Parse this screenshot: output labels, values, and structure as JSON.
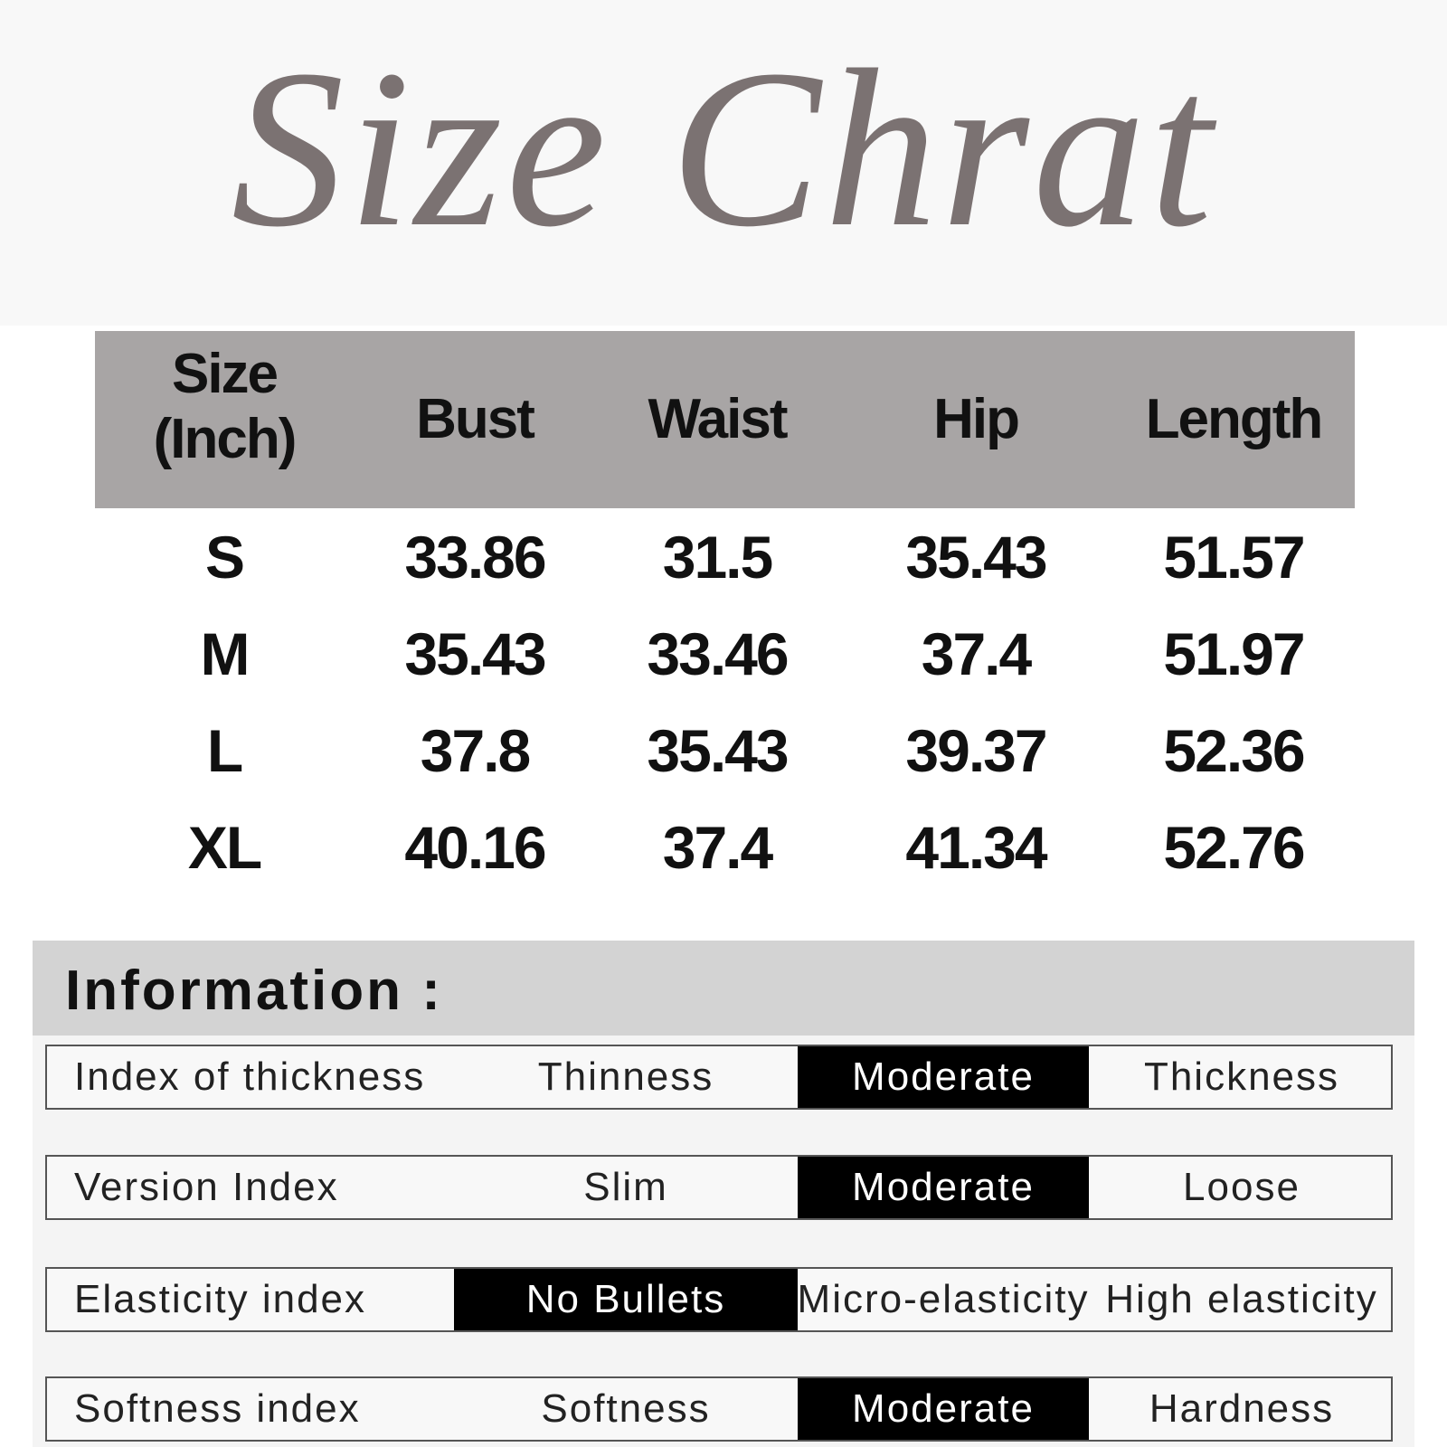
{
  "title": "Size Chrat",
  "table": {
    "header": [
      "Size (Inch)",
      "Bust",
      "Waist",
      "Hip",
      "Length"
    ],
    "rows": [
      [
        "S",
        33.86,
        31.5,
        35.43,
        51.57
      ],
      [
        "M",
        35.43,
        33.46,
        37.4,
        51.97
      ],
      [
        "L",
        37.8,
        35.43,
        39.37,
        52.36
      ],
      [
        "XL",
        40.16,
        37.4,
        41.34,
        52.76
      ]
    ]
  },
  "information": {
    "title": "Information :",
    "rows": [
      {
        "label": "Index of thickness",
        "options": [
          "Thinness",
          "Moderate",
          "Thickness"
        ],
        "selected": 1
      },
      {
        "label": "Version Index",
        "options": [
          "Slim",
          "Moderate",
          "Loose"
        ],
        "selected": 1
      },
      {
        "label": "Elasticity index",
        "options": [
          "No Bullets",
          "Micro-elasticity",
          "High elasticity"
        ],
        "selected": 0
      },
      {
        "label": "Softness index",
        "options": [
          "Softness",
          "Moderate",
          "Hardness"
        ],
        "selected": 1
      }
    ]
  }
}
